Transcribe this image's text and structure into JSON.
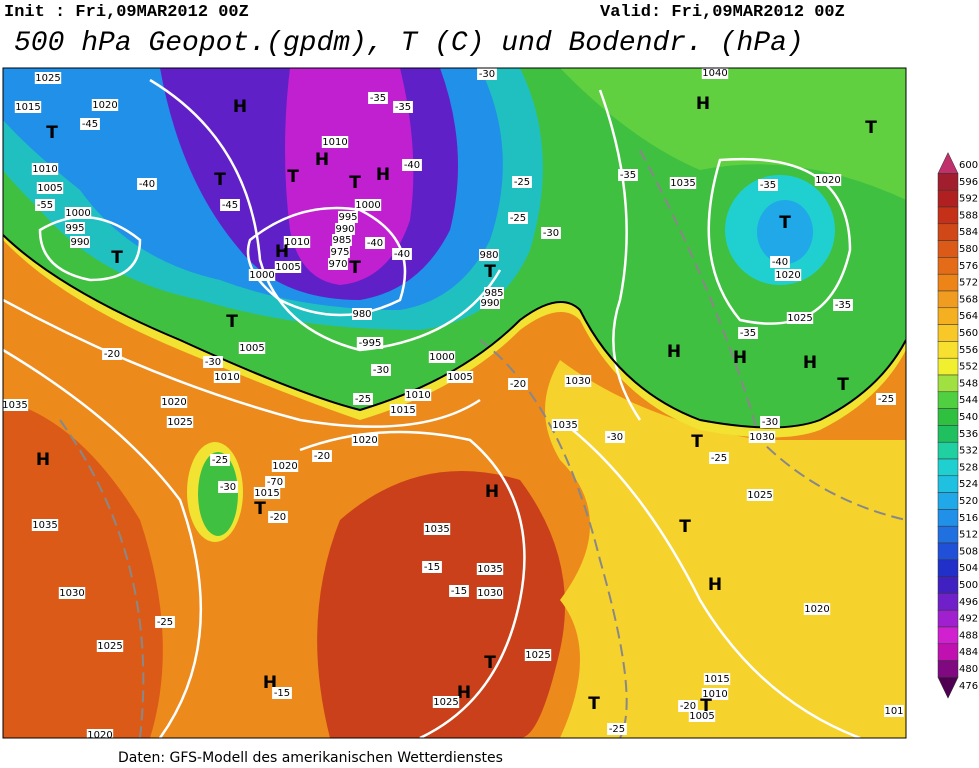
{
  "header": {
    "init": "Init : Fri,09MAR2012 00Z",
    "valid": "Valid: Fri,09MAR2012 00Z",
    "title": "500 hPa Geopot.(gpdm), T (C) und Bodendr. (hPa)"
  },
  "footer": "Daten: GFS-Modell des amerikanischen Wetterdienstes",
  "legend": {
    "levels": [
      600,
      596,
      592,
      588,
      584,
      580,
      576,
      572,
      568,
      564,
      560,
      556,
      552,
      548,
      544,
      540,
      536,
      532,
      528,
      524,
      520,
      516,
      512,
      508,
      504,
      500,
      496,
      492,
      488,
      484,
      480,
      476
    ],
    "colors": [
      "#c0306a",
      "#a01e2e",
      "#b02020",
      "#c43018",
      "#d04818",
      "#dc5a18",
      "#e46c18",
      "#ec8418",
      "#f09c20",
      "#f4b020",
      "#f8c828",
      "#f8e030",
      "#f0f030",
      "#a0e040",
      "#50d040",
      "#30c040",
      "#20c060",
      "#20d0a0",
      "#20d0d0",
      "#20c0e0",
      "#20a8e8",
      "#2090e8",
      "#2070e0",
      "#2050d8",
      "#2030c8",
      "#4020c0",
      "#7020c8",
      "#a020d0",
      "#d020d0",
      "#c010b0",
      "#800880",
      "#500050"
    ]
  },
  "map": {
    "labels": [
      "1025",
      "1015",
      "1020",
      "-45",
      "T",
      "H",
      "-35",
      "-35",
      "-30",
      "1010",
      "1005",
      "-40",
      "T",
      "-45",
      "-55",
      "1000",
      "995",
      "990",
      "T",
      "1010",
      "H",
      "T",
      "T",
      "H",
      "-40",
      "1000",
      "995",
      "990",
      "985",
      "975",
      "970",
      "1010",
      "1005",
      "1000",
      "H",
      "-40",
      "-40",
      "T",
      "980",
      "980",
      "T",
      "985",
      "990",
      "-25",
      "-30",
      "-25",
      "-35",
      "1035",
      "1040",
      "H",
      "T",
      "-35",
      "1020",
      "T",
      "-40",
      "1020",
      "-35",
      "1025",
      "-35",
      "H",
      "H",
      "H",
      "T",
      "-30",
      "1030",
      "T",
      "-25",
      "-25",
      "T",
      "1005",
      "-30",
      "1010",
      "-20",
      "1020",
      "1025",
      "-995",
      "1000",
      "-30",
      "1005",
      "1010",
      "1015",
      "-25",
      "1020",
      "-20",
      "1030",
      "1035",
      "-30",
      "H",
      "1035",
      "-25",
      "-30",
      "1020",
      "-20",
      "-20",
      "-70",
      "1015",
      "T",
      "H",
      "1035",
      "1035",
      "-15",
      "1035",
      "-15",
      "1030",
      "1030",
      "-25",
      "1025",
      "H",
      "-15",
      "H",
      "T",
      "1025",
      "1025",
      "T",
      "1025",
      "T",
      "H",
      "1020",
      "1015",
      "1010",
      "1005",
      "T",
      "-25",
      "-20",
      "1020",
      "101"
    ]
  }
}
